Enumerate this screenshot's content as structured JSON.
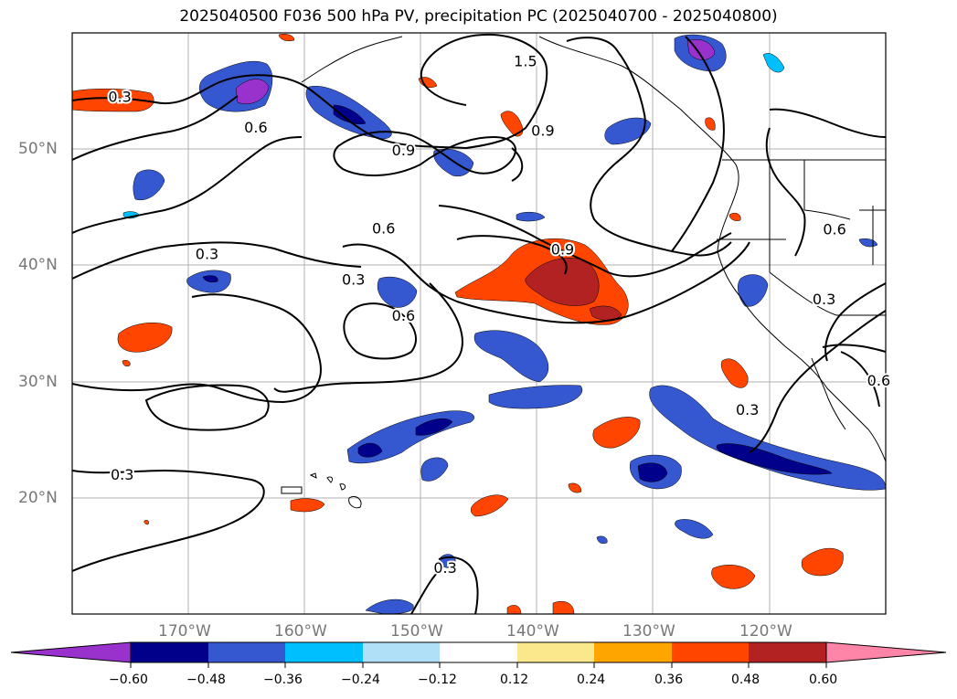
{
  "title": "2025040500 F036 500 hPa PV, precipitation PC (2025040700 - 2025040800)",
  "map": {
    "lon_range": [
      -180,
      -110
    ],
    "lat_range": [
      10,
      60
    ],
    "lat_labels": [
      {
        "lat": 50,
        "text": "50°N"
      },
      {
        "lat": 40,
        "text": "40°N"
      },
      {
        "lat": 30,
        "text": "30°N"
      },
      {
        "lat": 20,
        "text": "20°N"
      }
    ],
    "lon_labels": [
      {
        "lon": -170,
        "text": "170°W"
      },
      {
        "lon": -160,
        "text": "160°W"
      },
      {
        "lon": -150,
        "text": "150°W"
      },
      {
        "lon": -140,
        "text": "140°W"
      },
      {
        "lon": -130,
        "text": "130°W"
      },
      {
        "lon": -120,
        "text": "120°W"
      }
    ],
    "contour_labels": [
      {
        "text": "0.3",
        "lon": -175.9,
        "lat": 54.4
      },
      {
        "text": "0.6",
        "lon": -164.2,
        "lat": 51.8
      },
      {
        "text": "1.5",
        "lon": -141.0,
        "lat": 57.5
      },
      {
        "text": "0.9",
        "lon": -139.5,
        "lat": 51.5
      },
      {
        "text": "0.9",
        "lon": -151.5,
        "lat": 49.8
      },
      {
        "text": "0.6",
        "lon": -153.2,
        "lat": 43.1
      },
      {
        "text": "0.3",
        "lon": -168.4,
        "lat": 40.9
      },
      {
        "text": "0.3",
        "lon": -155.8,
        "lat": 38.7
      },
      {
        "text": "0.6",
        "lon": -151.5,
        "lat": 35.6
      },
      {
        "text": "0.9",
        "lon": -137.8,
        "lat": 41.3
      },
      {
        "text": "0.6",
        "lon": -114.4,
        "lat": 43.0
      },
      {
        "text": "0.3",
        "lon": -115.3,
        "lat": 37.0
      },
      {
        "text": "0.3",
        "lon": -121.9,
        "lat": 27.5
      },
      {
        "text": "0.6",
        "lon": -110.6,
        "lat": 30.0
      },
      {
        "text": "0.3",
        "lon": -175.7,
        "lat": 21.9
      },
      {
        "text": "0.3",
        "lon": -147.9,
        "lat": 13.9
      }
    ]
  },
  "colorbar": {
    "tick_labels": [
      "−0.60",
      "−0.48",
      "−0.36",
      "−0.24",
      "−0.12",
      "0.12",
      "0.24",
      "0.36",
      "0.48",
      "0.60"
    ],
    "colors": [
      "#9932cc",
      "#00008b",
      "#3558d0",
      "#00bfff",
      "#b0e0f8",
      "#ffffff",
      "#fce88c",
      "#ffa500",
      "#ff4500",
      "#b22222",
      "#ff85a8"
    ]
  }
}
